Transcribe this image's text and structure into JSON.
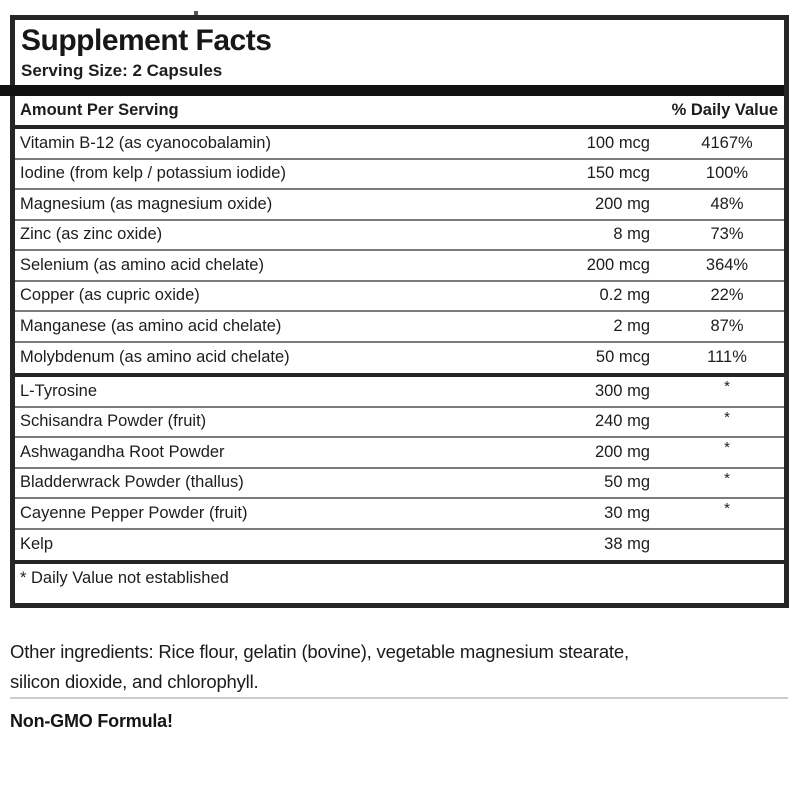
{
  "supplement_panel": {
    "title": "Supplement Facts",
    "serving_size_label": "Serving Size: 2 Capsules",
    "amount_header": "Amount Per Serving",
    "daily_value_header": "% Daily Value",
    "sections": [
      {
        "rows": [
          {
            "name": "Vitamin B-12 (as cyanocobalamin)",
            "amount": "100 mcg",
            "daily_value": "4167%"
          },
          {
            "name": "Iodine (from kelp / potassium iodide)",
            "amount": "150 mcg",
            "daily_value": "100%"
          },
          {
            "name": "Magnesium (as magnesium oxide)",
            "amount": "200 mg",
            "daily_value": "48%"
          },
          {
            "name": "Zinc (as zinc oxide)",
            "amount": "8 mg",
            "daily_value": "73%"
          },
          {
            "name": "Selenium (as amino acid chelate)",
            "amount": "200 mcg",
            "daily_value": "364%"
          },
          {
            "name": "Copper (as cupric oxide)",
            "amount": "0.2 mg",
            "daily_value": "22%"
          },
          {
            "name": "Manganese (as amino acid chelate)",
            "amount": "2 mg",
            "daily_value": "87%"
          },
          {
            "name": "Molybdenum (as amino acid chelate)",
            "amount": "50 mcg",
            "daily_value": "111%"
          }
        ]
      },
      {
        "rows": [
          {
            "name": "L-Tyrosine",
            "amount": "300 mg",
            "daily_value": "*"
          },
          {
            "name": "Schisandra Powder (fruit)",
            "amount": "240 mg",
            "daily_value": "*"
          },
          {
            "name": "Ashwagandha Root Powder",
            "amount": "200 mg",
            "daily_value": "*"
          },
          {
            "name": "Bladderwrack Powder (thallus)",
            "amount": "50 mg",
            "daily_value": "*"
          },
          {
            "name": "Cayenne Pepper Powder (fruit)",
            "amount": "30 mg",
            "daily_value": "*"
          },
          {
            "name": "Kelp",
            "amount": "38 mg",
            "daily_value": ""
          }
        ]
      }
    ],
    "footnote": "* Daily Value not established"
  },
  "other_ingredients_text": "Other ingredients: Rice flour, gelatin (bovine), vegetable magnesium stearate, silicon dioxide, and chlorophyll.",
  "non_gmo_text": "Non-GMO Formula!",
  "colors": {
    "panel_border": "#262626",
    "thick_bar": "#111111",
    "row_divider": "#7b7b7b",
    "section_divider": "#242424",
    "text": "#1d1d1d",
    "light_rule": "#cccccc"
  }
}
